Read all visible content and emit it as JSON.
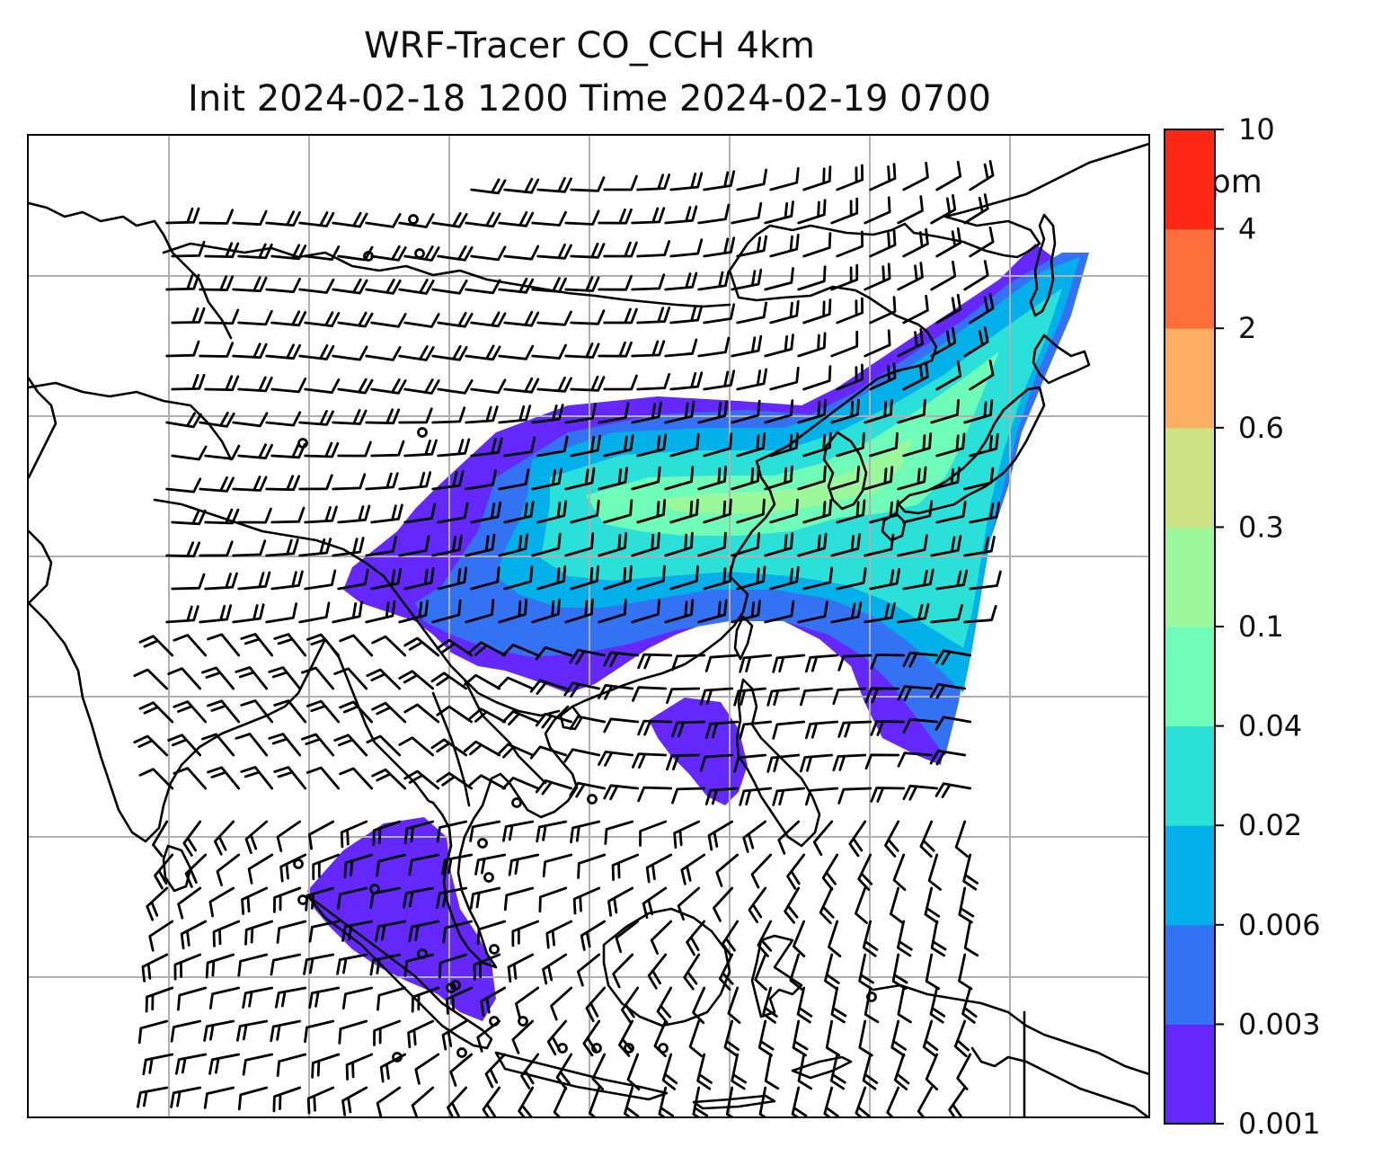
{
  "title": {
    "line1": "WRF-Tracer CO_CCH 4km",
    "line2": "Init 2024-02-18 1200 Time 2024-02-19 0700"
  },
  "colorbar": {
    "unit": "ppm",
    "levels": [
      "0.001",
      "0.003",
      "0.006",
      "0.02",
      "0.04",
      "0.1",
      "0.3",
      "0.6",
      "2",
      "4",
      "10"
    ],
    "colors": [
      "#6528fc",
      "#3472f4",
      "#03b0ea",
      "#2be0d8",
      "#6efcb8",
      "#9cf99b",
      "#cde282",
      "#fcae62",
      "#fe6e3b",
      "#fe2713"
    ]
  },
  "map": {
    "coastline_color": "#000000",
    "gridline_color": "#b0b0b0",
    "barb_color": "#000000"
  }
}
